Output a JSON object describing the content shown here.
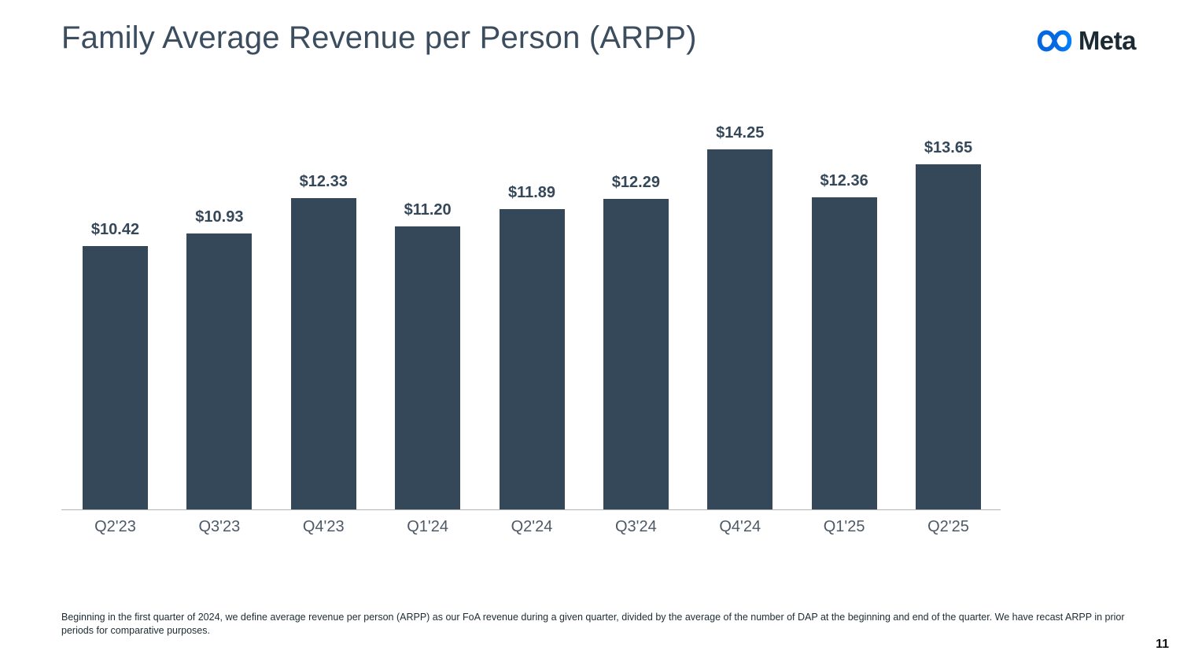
{
  "slide": {
    "title": "Family Average Revenue per Person (ARPP)",
    "brand": {
      "wordmark": "Meta"
    },
    "footnote": "Beginning in the first quarter of 2024, we define average revenue per person (ARPP) as our FoA revenue during a given quarter, divided by the average of the number of DAP at the beginning and end of the quarter. We have recast ARPP in prior periods for comparative purposes.",
    "page_number": "11"
  },
  "chart_data": {
    "type": "bar",
    "title": "Family Average Revenue per Person (ARPP)",
    "categories": [
      "Q2'23",
      "Q3'23",
      "Q4'23",
      "Q1'24",
      "Q2'24",
      "Q3'24",
      "Q4'24",
      "Q1'25",
      "Q2'25"
    ],
    "values": [
      10.42,
      10.93,
      12.33,
      11.2,
      11.89,
      12.29,
      14.25,
      12.36,
      13.65
    ],
    "data_labels": [
      "$10.42",
      "$10.93",
      "$12.33",
      "$11.20",
      "$11.89",
      "$12.29",
      "$14.25",
      "$12.36",
      "$13.65"
    ],
    "xlabel": "",
    "ylabel": "",
    "ylim": [
      0,
      14.25
    ],
    "grid": false,
    "legend": "none",
    "bar_color": "#35485A"
  },
  "colors": {
    "background": "#FFFFFF",
    "title": "#3B4D5E",
    "bar": "#35485A",
    "value_label": "#35485A",
    "tick_label": "#4D5966",
    "axis_line": "#AEB4B9",
    "footnote": "#1C2B33",
    "wordmark": "#1C2B33",
    "logo_blue_start": "#0568E0",
    "logo_blue_end": "#0180FA"
  }
}
